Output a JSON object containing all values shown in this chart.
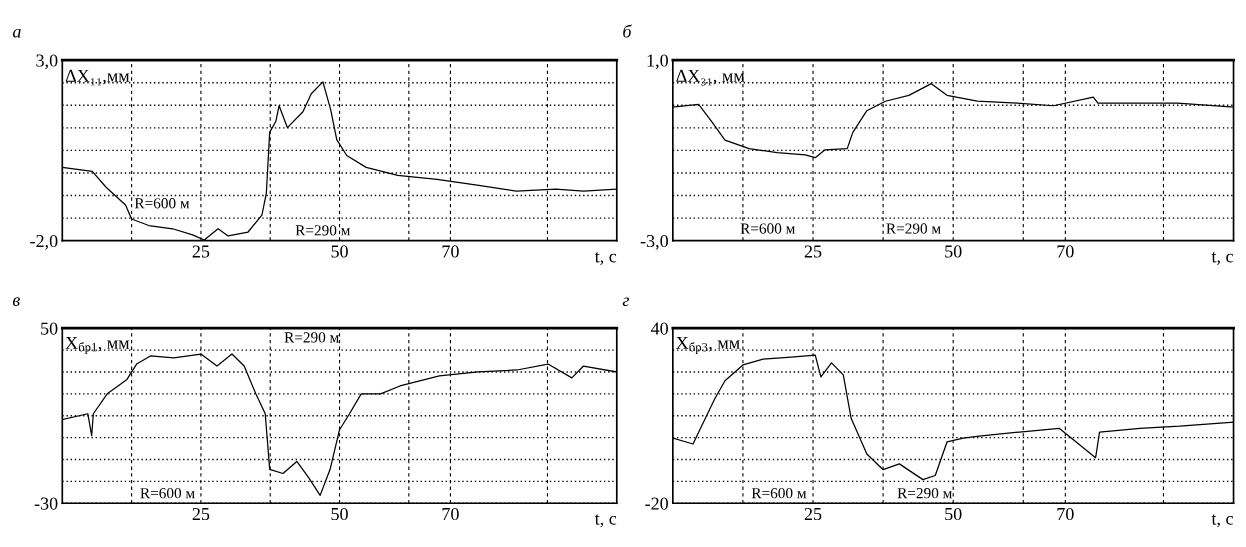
{
  "chart_data": [
    {
      "type": "line",
      "title": "а",
      "ylabel": "ΔX₁₁,мм",
      "xlabel": "t, с",
      "xlim": [
        0,
        100
      ],
      "ylim": [
        -2.0,
        3.0
      ],
      "xticks": [
        {
          "value": 12.5,
          "label": null
        },
        25,
        {
          "value": 37.5,
          "label": null
        },
        50,
        {
          "value": 62.5,
          "label": null
        },
        70,
        {
          "value": 87.5,
          "label": null
        }
      ],
      "yticks": [
        {
          "value": -2.0,
          "label": "-2,0"
        },
        {
          "value": -1.375,
          "label": null
        },
        {
          "value": -0.75,
          "label": null
        },
        {
          "value": -0.125,
          "label": null
        },
        {
          "value": 0.5,
          "label": null
        },
        {
          "value": 1.125,
          "label": null
        },
        {
          "value": 1.75,
          "label": null
        },
        {
          "value": 2.375,
          "label": null
        },
        {
          "value": 3.0,
          "label": "3,0"
        }
      ],
      "grid": true,
      "annotations": [
        "R=600 м",
        "R=290 м"
      ],
      "series": [
        {
          "color": "#000000",
          "x": [
            0,
            5.4,
            7.9,
            11.4,
            12.5,
            15.6,
            19.9,
            23.5,
            25.6,
            28.1,
            29.9,
            33.5,
            36,
            36.8,
            37.4,
            38.5,
            39.1,
            40.6,
            43.4,
            44.9,
            47,
            48.4,
            49.5,
            51.3,
            54.8,
            60.5,
            67.6,
            74.8,
            81.9,
            89,
            94,
            100
          ],
          "values": [
            0.03,
            -0.08,
            -0.52,
            -1.01,
            -1.4,
            -1.58,
            -1.67,
            -1.84,
            -1.98,
            -1.67,
            -1.87,
            -1.76,
            -1.29,
            -0.68,
            1.0,
            1.3,
            1.74,
            1.13,
            1.57,
            2.07,
            2.4,
            1.63,
            0.8,
            0.36,
            0.03,
            -0.19,
            -0.3,
            -0.46,
            -0.63,
            -0.57,
            -0.63,
            -0.57
          ]
        }
      ]
    },
    {
      "type": "line",
      "title": "б",
      "ylabel": "ΔX₃₁, мм",
      "xlabel": "t, с",
      "xlim": [
        0,
        100
      ],
      "ylim": [
        -3.0,
        1.0
      ],
      "xticks": [
        {
          "value": 12.5,
          "label": null
        },
        25,
        {
          "value": 37.5,
          "label": null
        },
        50,
        {
          "value": 62.5,
          "label": null
        },
        70,
        {
          "value": 87.5,
          "label": null
        }
      ],
      "yticks": [
        {
          "value": -3.0,
          "label": "-3,0"
        },
        {
          "value": -2.5,
          "label": null
        },
        {
          "value": -2.0,
          "label": null
        },
        {
          "value": -1.5,
          "label": null
        },
        {
          "value": -1.0,
          "label": null
        },
        {
          "value": -0.5,
          "label": null
        },
        {
          "value": 0.0,
          "label": null
        },
        {
          "value": 0.5,
          "label": null
        },
        {
          "value": 1.0,
          "label": "1,0"
        }
      ],
      "grid": true,
      "annotations": [
        "R=600 м",
        "R=290 м"
      ],
      "series": [
        {
          "color": "#000000",
          "x": [
            0,
            4.6,
            6.8,
            9.3,
            13.6,
            18.6,
            23.6,
            25.4,
            27.1,
            31.1,
            32.1,
            34.6,
            37.9,
            42.1,
            46.1,
            48.9,
            54.3,
            61.4,
            67.9,
            75,
            75.8,
            82.9,
            90,
            100
          ],
          "values": [
            -0.04,
            0.02,
            -0.34,
            -0.77,
            -0.96,
            -1.05,
            -1.1,
            -1.16,
            -0.99,
            -0.96,
            -0.6,
            -0.12,
            0.09,
            0.22,
            0.48,
            0.22,
            0.09,
            0.05,
            -0.01,
            0.18,
            0.05,
            0.05,
            0.05,
            -0.04
          ]
        }
      ]
    },
    {
      "type": "line",
      "title": "в",
      "ylabel": "X$_{бр1}$, мм",
      "xlabel": "t, с",
      "xlim": [
        0,
        100
      ],
      "ylim": [
        -30,
        50
      ],
      "xticks": [
        {
          "value": 12.5,
          "label": null
        },
        25,
        {
          "value": 37.5,
          "label": null
        },
        50,
        {
          "value": 62.5,
          "label": null
        },
        70,
        {
          "value": 87.5,
          "label": null
        }
      ],
      "yticks": [
        -30,
        {
          "value": -20,
          "label": null
        },
        {
          "value": -10,
          "label": null
        },
        {
          "value": 0,
          "label": null
        },
        {
          "value": 10,
          "label": null
        },
        {
          "value": 20,
          "label": null
        },
        {
          "value": 30,
          "label": null
        },
        {
          "value": 40,
          "label": null
        },
        50
      ],
      "grid": true,
      "annotations": [
        "R=600 м",
        "R=290 м"
      ],
      "series": [
        {
          "color": "#000000",
          "x": [
            0,
            4.6,
            5.3,
            5.6,
            8.1,
            11.6,
            13.4,
            15.9,
            20.1,
            25,
            27.9,
            30.6,
            32.8,
            34.9,
            36.6,
            37.4,
            39.8,
            42.3,
            44.4,
            46.5,
            48.3,
            50,
            51.8,
            53.9,
            57.4,
            60.9,
            68,
            75,
            82,
            87.6,
            91.9,
            94,
            100
          ],
          "values": [
            8.2,
            10.9,
            0.9,
            10.9,
            20,
            26.4,
            33.6,
            37.3,
            36.4,
            38.2,
            32.7,
            38.2,
            32.7,
            20,
            10.9,
            -14.5,
            -16.4,
            -10.9,
            -18.2,
            -26.4,
            -14.5,
            3.6,
            10.9,
            20,
            20,
            23.6,
            28.2,
            30,
            30.9,
            33.6,
            27.3,
            32.7,
            30
          ]
        }
      ]
    },
    {
      "type": "line",
      "title": "г",
      "ylabel": "X$_{бр3}$, мм",
      "xlabel": "t, с",
      "xlim": [
        0,
        100
      ],
      "ylim": [
        -20,
        40
      ],
      "xticks": [
        {
          "value": 12.5,
          "label": null
        },
        25,
        {
          "value": 37.5,
          "label": null
        },
        50,
        {
          "value": 62.5,
          "label": null
        },
        70,
        {
          "value": 87.5,
          "label": null
        }
      ],
      "yticks": [
        -20,
        {
          "value": -12.5,
          "label": null
        },
        {
          "value": -5,
          "label": null
        },
        {
          "value": 2.5,
          "label": null
        },
        {
          "value": 10,
          "label": null
        },
        {
          "value": 17.5,
          "label": null
        },
        {
          "value": 25,
          "label": null
        },
        {
          "value": 32.5,
          "label": null
        },
        40
      ],
      "grid": true,
      "annotations": [
        "R=600 м",
        "R=290 м"
      ],
      "series": [
        {
          "color": "#000000",
          "x": [
            0,
            3.6,
            5.8,
            7.5,
            9.3,
            12.5,
            16.1,
            21.1,
            25.4,
            26.4,
            28.3,
            30.4,
            31.8,
            34.6,
            37.5,
            40.4,
            44.6,
            46.8,
            48.9,
            51.8,
            54.6,
            61.8,
            68.9,
            75.4,
            76.1,
            83.3,
            90.4,
            100
          ],
          "values": [
            2.3,
            0.3,
            9.1,
            15.9,
            22,
            27.4,
            29.4,
            30.1,
            30.8,
            23.3,
            28.1,
            24,
            9.1,
            -3.1,
            -8.5,
            -6.5,
            -11.9,
            -10.5,
            1,
            2.3,
            3,
            4.4,
            5.7,
            -4.4,
            4.4,
            5.7,
            6.4,
            7.8
          ]
        }
      ]
    }
  ]
}
